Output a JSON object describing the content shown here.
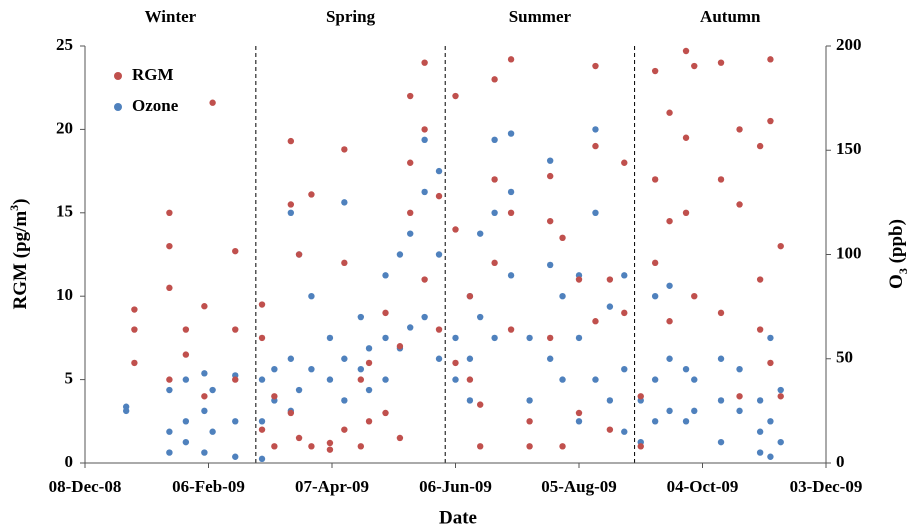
{
  "chart_data": {
    "type": "scatter",
    "xlabel": "Date",
    "ylabel": [
      "RGM (pg/m",
      "3",
      ")"
    ],
    "y2label": [
      "O",
      "3",
      " (ppb)"
    ],
    "xlim": [
      "2008-12-08",
      "2009-12-03"
    ],
    "xticks": [
      {
        "value": "2008-12-08",
        "label": "08-Dec-08"
      },
      {
        "value": "2009-02-06",
        "label": "06-Feb-09"
      },
      {
        "value": "2009-04-07",
        "label": "07-Apr-09"
      },
      {
        "value": "2009-06-06",
        "label": "06-Jun-09"
      },
      {
        "value": "2009-08-05",
        "label": "05-Aug-09"
      },
      {
        "value": "2009-10-04",
        "label": "04-Oct-09"
      },
      {
        "value": "2009-12-03",
        "label": "03-Dec-09"
      }
    ],
    "ylim": [
      0,
      25
    ],
    "yticks": [
      0,
      5,
      10,
      15,
      20,
      25
    ],
    "y2lim": [
      0,
      200
    ],
    "y2ticks": [
      0,
      50,
      100,
      150,
      200
    ],
    "legend": "upper left",
    "seasons": [
      "Winter",
      "Spring",
      "Summer",
      "Autumn"
    ],
    "season_dividers": [
      "2009-03-01",
      "2009-06-01",
      "2009-09-01"
    ],
    "series": [
      {
        "name": "Ozone",
        "color": "#4f81bd",
        "axis": "y2",
        "x": [
          "2008-12-28",
          "2008-12-28",
          "2009-01-18",
          "2009-01-18",
          "2009-01-18",
          "2009-01-26",
          "2009-01-26",
          "2009-01-26",
          "2009-02-04",
          "2009-02-04",
          "2009-02-04",
          "2009-02-08",
          "2009-02-08",
          "2009-02-19",
          "2009-02-19",
          "2009-02-19",
          "2009-03-04",
          "2009-03-04",
          "2009-03-04",
          "2009-03-10",
          "2009-03-10",
          "2009-03-18",
          "2009-03-18",
          "2009-03-18",
          "2009-03-22",
          "2009-03-22",
          "2009-03-28",
          "2009-03-28",
          "2009-04-06",
          "2009-04-06",
          "2009-04-13",
          "2009-04-13",
          "2009-04-13",
          "2009-04-21",
          "2009-04-21",
          "2009-04-25",
          "2009-04-25",
          "2009-05-03",
          "2009-05-03",
          "2009-05-03",
          "2009-05-10",
          "2009-05-10",
          "2009-05-15",
          "2009-05-15",
          "2009-05-22",
          "2009-05-22",
          "2009-05-22",
          "2009-05-29",
          "2009-05-29",
          "2009-05-29",
          "2009-06-06",
          "2009-06-06",
          "2009-06-13",
          "2009-06-13",
          "2009-06-13",
          "2009-06-18",
          "2009-06-18",
          "2009-06-25",
          "2009-06-25",
          "2009-06-25",
          "2009-07-03",
          "2009-07-03",
          "2009-07-03",
          "2009-07-12",
          "2009-07-12",
          "2009-07-22",
          "2009-07-22",
          "2009-07-22",
          "2009-07-28",
          "2009-07-28",
          "2009-08-05",
          "2009-08-05",
          "2009-08-05",
          "2009-08-13",
          "2009-08-13",
          "2009-08-13",
          "2009-08-20",
          "2009-08-20",
          "2009-08-27",
          "2009-08-27",
          "2009-08-27",
          "2009-09-04",
          "2009-09-04",
          "2009-09-11",
          "2009-09-11",
          "2009-09-11",
          "2009-09-18",
          "2009-09-18",
          "2009-09-18",
          "2009-09-26",
          "2009-09-26",
          "2009-09-30",
          "2009-09-30",
          "2009-10-13",
          "2009-10-13",
          "2009-10-13",
          "2009-10-22",
          "2009-10-22",
          "2009-11-01",
          "2009-11-01",
          "2009-11-01",
          "2009-11-06",
          "2009-11-06",
          "2009-11-06",
          "2009-11-11",
          "2009-11-11"
        ],
        "values": [
          27,
          25,
          15,
          5,
          35,
          40,
          20,
          10,
          43,
          25,
          5,
          35,
          15,
          42,
          20,
          3,
          40,
          20,
          2,
          45,
          30,
          120,
          50,
          25,
          100,
          35,
          80,
          45,
          60,
          40,
          125,
          50,
          30,
          70,
          45,
          55,
          35,
          90,
          60,
          40,
          100,
          55,
          110,
          65,
          155,
          130,
          70,
          140,
          100,
          50,
          60,
          40,
          80,
          50,
          30,
          110,
          70,
          155,
          120,
          60,
          158,
          130,
          90,
          60,
          30,
          145,
          95,
          50,
          80,
          40,
          90,
          60,
          20,
          160,
          120,
          40,
          75,
          30,
          90,
          45,
          15,
          30,
          10,
          80,
          40,
          20,
          85,
          50,
          25,
          45,
          20,
          40,
          25,
          50,
          30,
          10,
          45,
          25,
          30,
          15,
          5,
          60,
          20,
          3,
          35,
          10
        ]
      },
      {
        "name": "RGM",
        "color": "#c0504d",
        "axis": "y",
        "x": [
          "2009-01-01",
          "2009-01-01",
          "2009-01-01",
          "2009-01-18",
          "2009-01-18",
          "2009-01-18",
          "2009-01-18",
          "2009-01-26",
          "2009-01-26",
          "2009-02-04",
          "2009-02-04",
          "2009-02-08",
          "2009-02-19",
          "2009-02-19",
          "2009-02-19",
          "2009-03-04",
          "2009-03-04",
          "2009-03-04",
          "2009-03-10",
          "2009-03-10",
          "2009-03-18",
          "2009-03-18",
          "2009-03-18",
          "2009-03-22",
          "2009-03-22",
          "2009-03-28",
          "2009-03-28",
          "2009-04-06",
          "2009-04-06",
          "2009-04-13",
          "2009-04-13",
          "2009-04-13",
          "2009-04-21",
          "2009-04-21",
          "2009-04-25",
          "2009-04-25",
          "2009-05-03",
          "2009-05-03",
          "2009-05-10",
          "2009-05-10",
          "2009-05-15",
          "2009-05-15",
          "2009-05-15",
          "2009-05-22",
          "2009-05-22",
          "2009-05-22",
          "2009-05-29",
          "2009-05-29",
          "2009-06-06",
          "2009-06-06",
          "2009-06-06",
          "2009-06-13",
          "2009-06-13",
          "2009-06-18",
          "2009-06-18",
          "2009-06-25",
          "2009-06-25",
          "2009-06-25",
          "2009-07-03",
          "2009-07-03",
          "2009-07-03",
          "2009-07-12",
          "2009-07-12",
          "2009-07-22",
          "2009-07-22",
          "2009-07-22",
          "2009-07-28",
          "2009-07-28",
          "2009-08-05",
          "2009-08-05",
          "2009-08-13",
          "2009-08-13",
          "2009-08-13",
          "2009-08-20",
          "2009-08-20",
          "2009-08-27",
          "2009-08-27",
          "2009-09-04",
          "2009-09-04",
          "2009-09-11",
          "2009-09-11",
          "2009-09-11",
          "2009-09-18",
          "2009-09-18",
          "2009-09-18",
          "2009-09-26",
          "2009-09-26",
          "2009-09-26",
          "2009-09-30",
          "2009-09-30",
          "2009-10-13",
          "2009-10-13",
          "2009-10-13",
          "2009-10-22",
          "2009-10-22",
          "2009-10-22",
          "2009-11-01",
          "2009-11-01",
          "2009-11-01",
          "2009-11-06",
          "2009-11-06",
          "2009-11-06",
          "2009-11-11",
          "2009-11-11"
        ],
        "values": [
          9.2,
          6.0,
          8.0,
          15.0,
          13.0,
          10.5,
          5.0,
          8.0,
          6.5,
          9.4,
          4.0,
          21.6,
          12.7,
          8.0,
          5.0,
          9.5,
          7.5,
          2.0,
          4.0,
          1.0,
          19.3,
          15.5,
          3.0,
          12.5,
          1.5,
          16.1,
          1.0,
          1.2,
          0.8,
          18.8,
          12.0,
          2.0,
          1.0,
          5.0,
          6.0,
          2.5,
          9.0,
          3.0,
          7.0,
          1.5,
          22.0,
          18.0,
          15.0,
          24.0,
          20.0,
          11.0,
          16.0,
          8.0,
          22.0,
          14.0,
          6.0,
          10.0,
          5.0,
          1.0,
          3.5,
          23.0,
          17.0,
          12.0,
          24.2,
          15.0,
          8.0,
          2.5,
          1.0,
          17.2,
          14.5,
          7.5,
          13.5,
          1.0,
          11.0,
          3.0,
          23.8,
          19.0,
          8.5,
          11.0,
          2.0,
          18.0,
          9.0,
          4.0,
          1.0,
          23.5,
          17.0,
          12.0,
          21.0,
          14.5,
          8.5,
          24.7,
          19.5,
          15.0,
          23.8,
          10.0,
          24.0,
          17.0,
          9.0,
          20.0,
          15.5,
          4.0,
          19.0,
          11.0,
          8.0,
          24.2,
          20.5,
          6.0,
          13.0,
          4.0
        ]
      }
    ]
  }
}
